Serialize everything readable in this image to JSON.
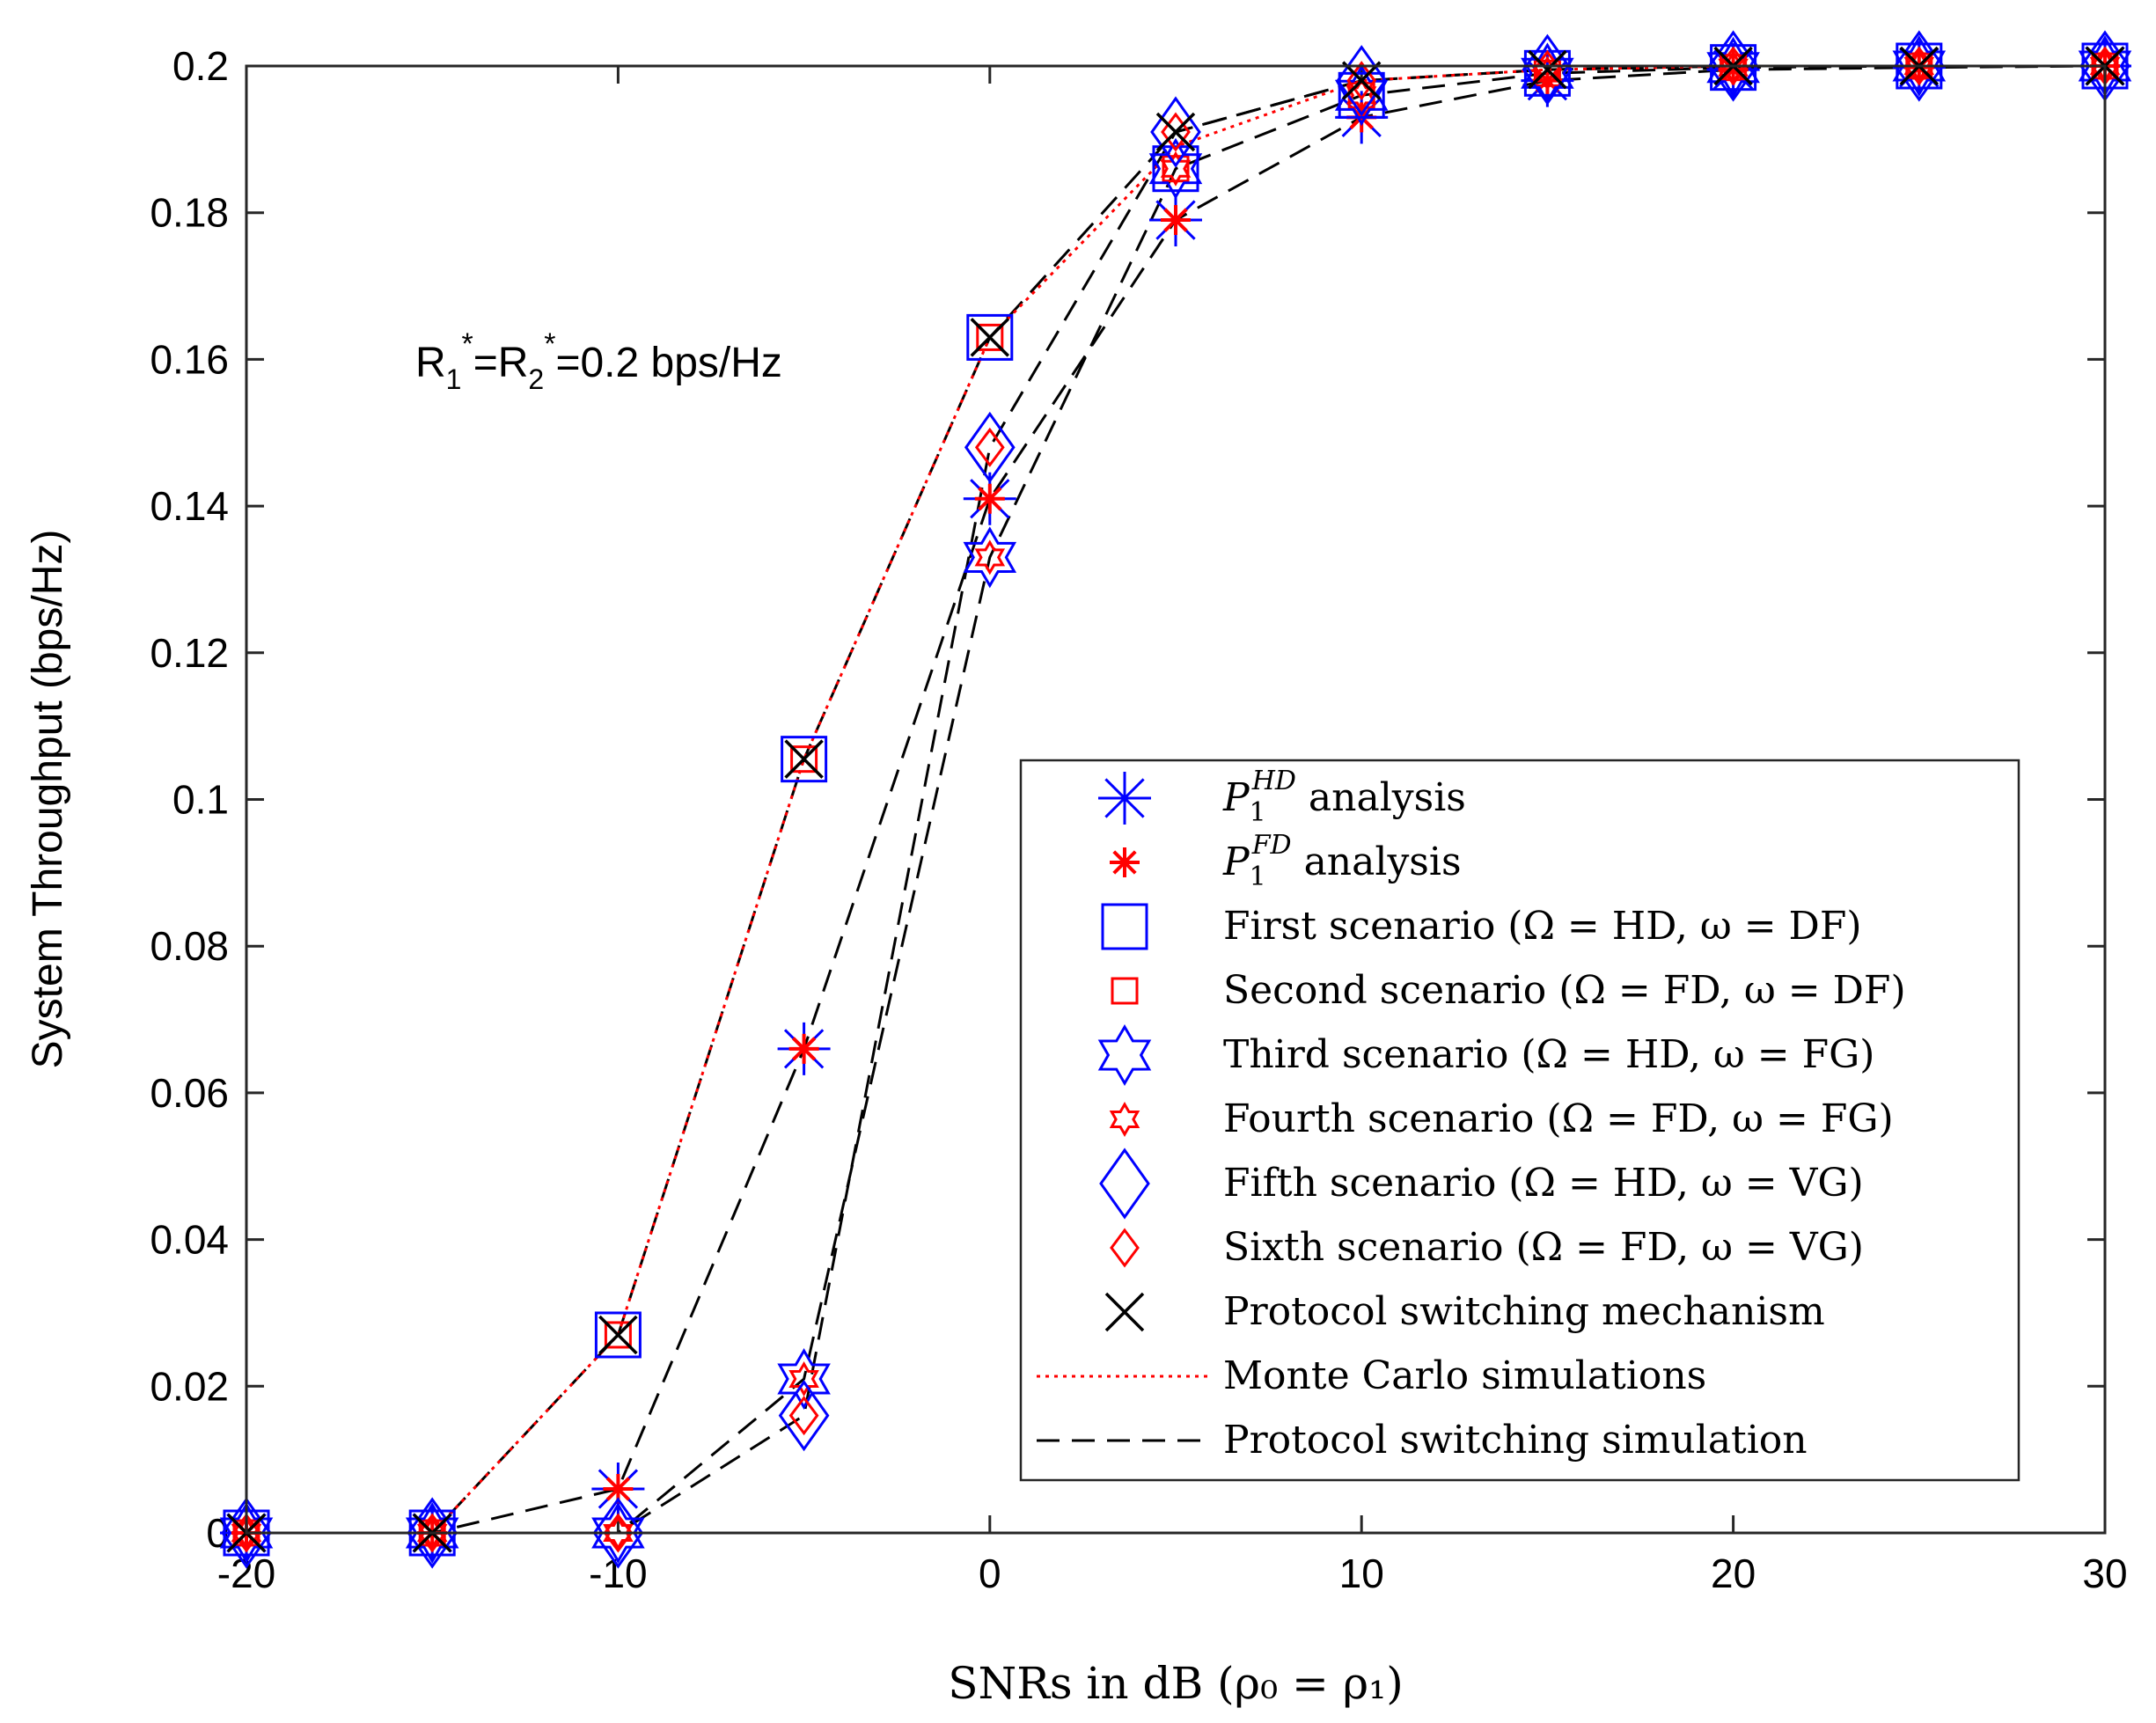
{
  "chart_data": {
    "type": "line",
    "title": "",
    "xlabel": "SNRs in dB (ρ₀ = ρ₁)",
    "ylabel": "System Throughput (bps/Hz)",
    "xlim": [
      -20,
      30
    ],
    "ylim": [
      0,
      0.2
    ],
    "x_ticks": [
      -20,
      -10,
      0,
      10,
      20,
      30
    ],
    "x_tick_labels": [
      "-20",
      "-10",
      "0",
      "10",
      "20",
      "30"
    ],
    "y_ticks": [
      0,
      0.02,
      0.04,
      0.06,
      0.08,
      0.1,
      0.12,
      0.14,
      0.16,
      0.18,
      0.2
    ],
    "y_tick_labels": [
      "0",
      "0.02",
      "0.04",
      "0.06",
      "0.08",
      "0.1",
      "0.12",
      "0.14",
      "0.16",
      "0.18",
      "0.2"
    ],
    "annotation": {
      "text": "R1*=R2*=0.2 bps/Hz",
      "parts": [
        "R",
        "1",
        "*",
        "=R",
        "2",
        "*",
        "=0.2 bps/Hz"
      ]
    },
    "legend_position": "lower-right",
    "x": [
      -20,
      -15,
      -10,
      -5,
      0,
      5,
      10,
      15,
      20,
      25,
      30
    ],
    "series": [
      {
        "name": "P1HD analysis",
        "legend_main": "P",
        "legend_sub": "1",
        "legend_sup": "HD",
        "legend_rest": " analysis",
        "marker": "asterisk-large",
        "color": "#0000ff",
        "values": [
          0,
          0,
          0.006,
          0.066,
          0.141,
          0.179,
          0.193,
          0.198,
          0.1995,
          0.1998,
          0.2
        ]
      },
      {
        "name": "P1FD analysis",
        "legend_main": "P",
        "legend_sub": "1",
        "legend_sup": "FD",
        "legend_rest": " analysis",
        "marker": "asterisk-small",
        "color": "#ff0000",
        "values": [
          0,
          0,
          0.006,
          0.066,
          0.141,
          0.179,
          0.193,
          0.198,
          0.1995,
          0.1998,
          0.2
        ]
      },
      {
        "name": "First scenario (Ω = HD, ω = DF)",
        "marker": "square-large",
        "color": "#0000ff",
        "values": [
          0,
          0,
          0.027,
          0.1055,
          0.163,
          0.186,
          0.196,
          0.199,
          0.1998,
          0.2,
          0.2
        ]
      },
      {
        "name": "Second scenario (Ω = FD, ω = DF)",
        "marker": "square-small",
        "color": "#ff0000",
        "values": [
          0,
          0,
          0.027,
          0.1055,
          0.163,
          0.186,
          0.196,
          0.199,
          0.1998,
          0.2,
          0.2
        ]
      },
      {
        "name": "Third scenario (Ω = HD, ω = FG)",
        "marker": "hexagram-large",
        "color": "#0000ff",
        "values": [
          0,
          0,
          0,
          0.021,
          0.133,
          0.186,
          0.196,
          0.199,
          0.1998,
          0.2,
          0.2
        ]
      },
      {
        "name": "Fourth scenario (Ω = FD, ω = FG)",
        "marker": "hexagram-small",
        "color": "#ff0000",
        "values": [
          0,
          0,
          0,
          0.021,
          0.133,
          0.186,
          0.196,
          0.199,
          0.1998,
          0.2,
          0.2
        ]
      },
      {
        "name": "Fifth scenario (Ω = HD, ω = VG)",
        "marker": "diamond-large",
        "color": "#0000ff",
        "values": [
          0,
          0,
          0,
          0.016,
          0.148,
          0.191,
          0.198,
          0.1995,
          0.2,
          0.2,
          0.2
        ]
      },
      {
        "name": "Sixth scenario (Ω = FD, ω = VG)",
        "marker": "diamond-small",
        "color": "#ff0000",
        "values": [
          0,
          0,
          0,
          0.016,
          0.148,
          0.191,
          0.198,
          0.1995,
          0.2,
          0.2,
          0.2
        ]
      },
      {
        "name": "Protocol switching mechanism",
        "marker": "x",
        "color": "#000000",
        "values": [
          0,
          0,
          0.027,
          0.1055,
          0.163,
          0.191,
          0.198,
          0.1995,
          0.2,
          0.2,
          0.2
        ]
      },
      {
        "name": "Monte Carlo simulations",
        "line": "dotted",
        "color": "#ff0000",
        "values": [
          0,
          0,
          0.027,
          0.1055,
          0.163,
          0.189,
          0.198,
          0.1995,
          0.2,
          0.2,
          0.2
        ]
      },
      {
        "name": "Protocol switching simulation",
        "line": "dashed",
        "color": "#000000",
        "values": [
          0,
          0,
          0.027,
          0.1055,
          0.163,
          0.189,
          0.198,
          0.1995,
          0.2,
          0.2,
          0.2
        ]
      }
    ],
    "dashed_curves": [
      [
        0,
        0,
        0.006,
        0.066,
        0.141,
        0.179,
        0.193,
        0.198,
        0.1995,
        0.1998,
        0.2
      ],
      [
        0,
        0,
        0,
        0.021,
        0.133,
        0.186,
        0.196,
        0.199,
        0.1998,
        0.2,
        0.2
      ],
      [
        0,
        0,
        0,
        0.016,
        0.148,
        0.191,
        0.198,
        0.1995,
        0.2,
        0.2,
        0.2
      ],
      [
        0,
        0,
        0.027,
        0.1055,
        0.163,
        0.191,
        0.198,
        0.1995,
        0.2,
        0.2,
        0.2
      ]
    ]
  }
}
